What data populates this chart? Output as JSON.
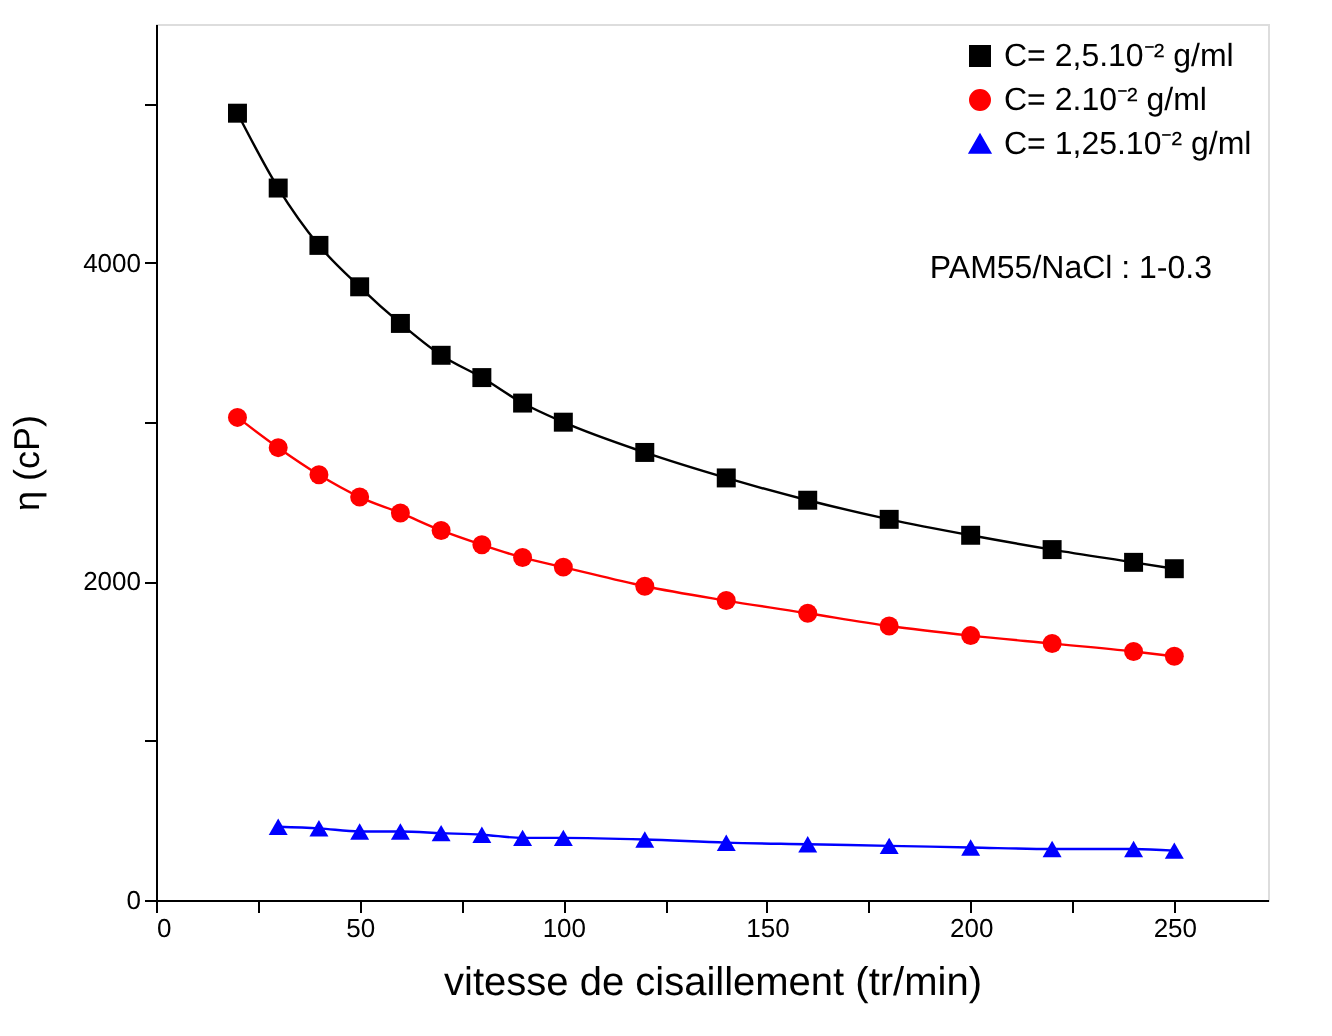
{
  "chart_data": {
    "type": "line",
    "xlabel": "vitesse de cisaillement (tr/min)",
    "ylabel": "η (cP)",
    "xlim": [
      0,
      273
    ],
    "ylim": [
      0,
      5500
    ],
    "xticks": [
      0,
      {
        "value": 25,
        "label": null
      },
      50,
      {
        "value": 75,
        "label": null
      },
      100,
      {
        "value": 125,
        "label": null
      },
      150,
      {
        "value": 175,
        "label": null
      },
      200,
      {
        "value": 225,
        "label": null
      },
      250
    ],
    "yticks": [
      0,
      {
        "value": 1000,
        "label": null
      },
      2000,
      {
        "value": 3000,
        "label": null
      },
      4000,
      {
        "value": 5000,
        "label": null
      }
    ],
    "grid": false,
    "legend": "top right",
    "line_style": "solid",
    "annotations": [
      "PAM55/NaCl : 1-0.3"
    ],
    "series": [
      {
        "name": "C= 2,5.10⁻² g/ml",
        "color": "#000000",
        "marker": "square",
        "x": [
          20,
          30,
          40,
          50,
          60,
          70,
          80,
          90,
          100,
          120,
          140,
          160,
          180,
          200,
          220,
          240,
          250
        ],
        "values": [
          4940,
          4470,
          4110,
          3850,
          3620,
          3420,
          3280,
          3120,
          3000,
          2810,
          2650,
          2510,
          2390,
          2290,
          2200,
          2120,
          2080
        ]
      },
      {
        "name": "C= 2.10⁻² g/ml",
        "color": "#ff0000",
        "marker": "circle",
        "x": [
          20,
          30,
          40,
          50,
          60,
          70,
          80,
          90,
          100,
          120,
          140,
          160,
          180,
          200,
          220,
          240,
          250
        ],
        "values": [
          3030,
          2840,
          2670,
          2530,
          2430,
          2320,
          2230,
          2150,
          2090,
          1970,
          1880,
          1800,
          1720,
          1660,
          1610,
          1560,
          1530
        ]
      },
      {
        "name": "C= 1,25.10⁻² g/ml",
        "color": "#0000ff",
        "marker": "triangle",
        "x": [
          30,
          40,
          50,
          60,
          70,
          80,
          90,
          100,
          120,
          140,
          160,
          180,
          200,
          220,
          240,
          250
        ],
        "values": [
          460,
          450,
          430,
          430,
          420,
          410,
          390,
          390,
          380,
          360,
          350,
          340,
          330,
          320,
          320,
          310
        ]
      }
    ]
  }
}
